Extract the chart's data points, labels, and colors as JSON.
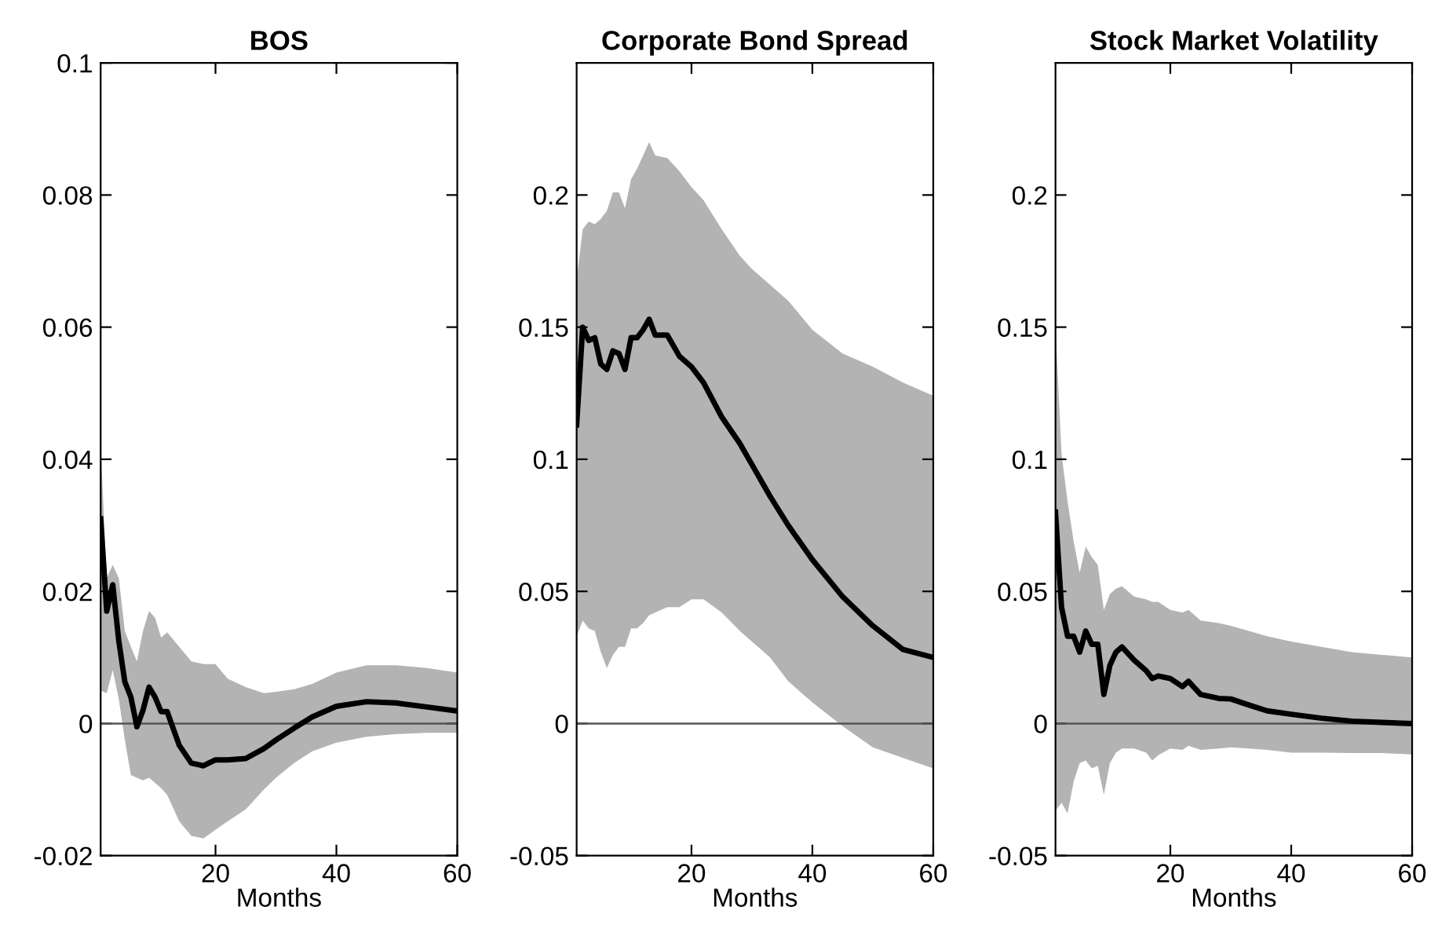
{
  "chart_data": [
    {
      "type": "line",
      "title": "BOS",
      "xlabel": "Months",
      "xlim": [
        1,
        60
      ],
      "xticks": [
        20,
        40,
        60
      ],
      "ylim": [
        -0.02,
        0.1
      ],
      "yticks": [
        -0.02,
        0,
        0.02,
        0.04,
        0.06,
        0.08,
        0.1
      ],
      "grid": false,
      "legend": false,
      "ref_lines": [
        {
          "axis": "y",
          "value": 0,
          "color": "#555555"
        }
      ],
      "x": [
        1,
        2,
        3,
        4,
        5,
        6,
        7,
        8,
        9,
        10,
        11,
        12,
        14,
        16,
        18,
        20,
        22,
        25,
        28,
        30,
        33,
        36,
        40,
        45,
        50,
        55,
        60
      ],
      "series": [
        {
          "color": "#000000",
          "values": [
            0.031,
            0.017,
            0.021,
            0.0125,
            0.0063,
            0.004,
            -0.0005,
            0.002,
            0.0055,
            0.004,
            0.0018,
            0.0018,
            -0.0033,
            -0.006,
            -0.0064,
            -0.0055,
            -0.0055,
            -0.0053,
            -0.0038,
            -0.0025,
            -0.0007,
            0.001,
            0.0026,
            0.0033,
            0.0031,
            0.0025,
            0.0019
          ],
          "upper": [
            0.042,
            0.022,
            0.024,
            0.022,
            0.014,
            0.0116,
            0.0094,
            0.014,
            0.017,
            0.016,
            0.013,
            0.0138,
            0.0116,
            0.0094,
            0.009,
            0.009,
            0.0068,
            0.0055,
            0.0046,
            0.0048,
            0.0052,
            0.006,
            0.0077,
            0.0088,
            0.0088,
            0.0084,
            0.0077
          ],
          "lower": [
            0.005,
            0.0046,
            0.0081,
            0.0037,
            -0.0025,
            -0.0078,
            -0.0082,
            -0.0086,
            -0.0082,
            -0.009,
            -0.0098,
            -0.0108,
            -0.0148,
            -0.017,
            -0.0174,
            -0.0161,
            -0.0148,
            -0.013,
            -0.01,
            -0.0082,
            -0.006,
            -0.0042,
            -0.0029,
            -0.002,
            -0.0016,
            -0.0014,
            -0.0014
          ]
        }
      ]
    },
    {
      "type": "line",
      "title": "Corporate Bond Spread",
      "xlabel": "Months",
      "xlim": [
        1,
        60
      ],
      "xticks": [
        20,
        40,
        60
      ],
      "ylim": [
        -0.05,
        0.25
      ],
      "yticks": [
        -0.05,
        0,
        0.05,
        0.1,
        0.15,
        0.2
      ],
      "grid": false,
      "legend": false,
      "ref_lines": [
        {
          "axis": "y",
          "value": 0,
          "color": "#555555"
        }
      ],
      "x": [
        1,
        2,
        3,
        4,
        5,
        6,
        7,
        8,
        9,
        10,
        11,
        12,
        13,
        14,
        16,
        18,
        20,
        22,
        25,
        28,
        30,
        33,
        36,
        40,
        45,
        50,
        55,
        60
      ],
      "series": [
        {
          "color": "#000000",
          "values": [
            0.113,
            0.15,
            0.145,
            0.146,
            0.136,
            0.134,
            0.141,
            0.14,
            0.134,
            0.146,
            0.146,
            0.149,
            0.153,
            0.147,
            0.147,
            0.139,
            0.135,
            0.129,
            0.116,
            0.106,
            0.098,
            0.086,
            0.075,
            0.062,
            0.048,
            0.037,
            0.028,
            0.025
          ],
          "upper": [
            0.168,
            0.187,
            0.19,
            0.189,
            0.191,
            0.194,
            0.201,
            0.201,
            0.195,
            0.206,
            0.21,
            0.215,
            0.22,
            0.215,
            0.214,
            0.209,
            0.203,
            0.198,
            0.187,
            0.177,
            0.172,
            0.166,
            0.16,
            0.149,
            0.14,
            0.135,
            0.129,
            0.124
          ],
          "lower": [
            0.033,
            0.039,
            0.036,
            0.035,
            0.027,
            0.021,
            0.026,
            0.029,
            0.029,
            0.036,
            0.036,
            0.038,
            0.041,
            0.042,
            0.044,
            0.044,
            0.047,
            0.047,
            0.042,
            0.035,
            0.031,
            0.025,
            0.016,
            0.008,
            -0.001,
            -0.009,
            -0.013,
            -0.017
          ]
        }
      ]
    },
    {
      "type": "line",
      "title": "Stock Market Volatility",
      "xlabel": "Months",
      "xlim": [
        1,
        60
      ],
      "xticks": [
        20,
        40,
        60
      ],
      "ylim": [
        -0.05,
        0.25
      ],
      "yticks": [
        -0.05,
        0,
        0.05,
        0.1,
        0.15,
        0.2
      ],
      "grid": false,
      "legend": false,
      "ref_lines": [
        {
          "axis": "y",
          "value": 0,
          "color": "#555555"
        }
      ],
      "x": [
        1,
        2,
        3,
        4,
        5,
        6,
        7,
        8,
        9,
        10,
        11,
        12,
        14,
        16,
        17,
        18,
        20,
        22,
        23,
        25,
        28,
        30,
        33,
        36,
        40,
        45,
        50,
        55,
        60
      ],
      "series": [
        {
          "color": "#000000",
          "values": [
            0.08,
            0.044,
            0.033,
            0.033,
            0.027,
            0.035,
            0.03,
            0.03,
            0.011,
            0.022,
            0.027,
            0.029,
            0.024,
            0.02,
            0.017,
            0.018,
            0.017,
            0.014,
            0.016,
            0.011,
            0.0095,
            0.0093,
            0.007,
            0.0048,
            0.0035,
            0.002,
            0.0009,
            0.0004,
            0
          ],
          "upper": [
            0.15,
            0.102,
            0.084,
            0.069,
            0.057,
            0.067,
            0.063,
            0.06,
            0.043,
            0.049,
            0.051,
            0.052,
            0.048,
            0.047,
            0.046,
            0.046,
            0.043,
            0.042,
            0.043,
            0.039,
            0.038,
            0.037,
            0.035,
            0.033,
            0.031,
            0.029,
            0.027,
            0.026,
            0.025
          ],
          "lower": [
            -0.033,
            -0.03,
            -0.034,
            -0.022,
            -0.015,
            -0.014,
            -0.017,
            -0.016,
            -0.027,
            -0.015,
            -0.011,
            -0.0095,
            -0.0095,
            -0.011,
            -0.014,
            -0.012,
            -0.0095,
            -0.01,
            -0.0084,
            -0.01,
            -0.0095,
            -0.009,
            -0.0095,
            -0.01,
            -0.011,
            -0.011,
            -0.0112,
            -0.0112,
            -0.0117
          ]
        }
      ]
    }
  ]
}
